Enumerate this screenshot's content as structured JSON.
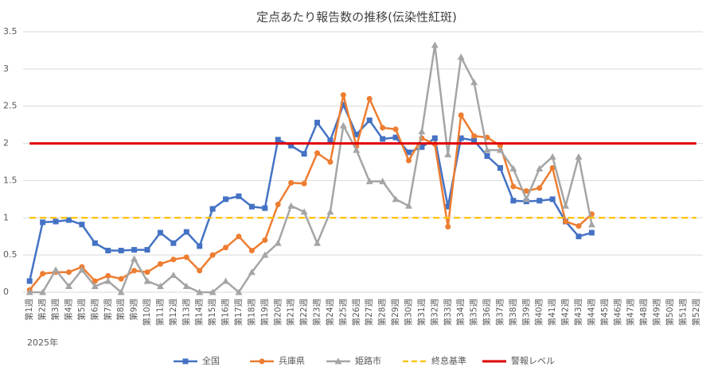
{
  "chart_data": {
    "type": "line",
    "title": "定点あたり報告数の推移(伝染性紅斑)",
    "x_label": "2025年",
    "categories": [
      "第1週",
      "第2週",
      "第3週",
      "第4週",
      "第5週",
      "第6週",
      "第7週",
      "第8週",
      "第9週",
      "第10週",
      "第11週",
      "第12週",
      "第13週",
      "第14週",
      "第15週",
      "第16週",
      "第17週",
      "第18週",
      "第19週",
      "第20週",
      "第21週",
      "第22週",
      "第23週",
      "第24週",
      "第25週",
      "第26週",
      "第27週",
      "第28週",
      "第29週",
      "第30週",
      "第31週",
      "第32週",
      "第33週",
      "第34週",
      "第35週",
      "第36週",
      "第37週",
      "第38週",
      "第39週",
      "第40週",
      "第41週",
      "第42週",
      "第43週",
      "第44週",
      "第45週",
      "第46週",
      "第47週",
      "第48週",
      "第49週",
      "第50週",
      "第51週",
      "第52週"
    ],
    "series": [
      {
        "name": "全国",
        "color": "#4472c4",
        "marker": "square",
        "values": [
          0.15,
          0.94,
          0.95,
          0.97,
          0.91,
          0.66,
          0.56,
          0.56,
          0.57,
          0.57,
          0.8,
          0.66,
          0.81,
          0.62,
          1.12,
          1.25,
          1.29,
          1.15,
          1.13,
          2.05,
          1.97,
          1.86,
          2.28,
          2.04,
          2.52,
          2.12,
          2.31,
          2.06,
          2.08,
          1.88,
          1.95,
          2.07,
          1.15,
          2.07,
          2.04,
          1.83,
          1.67,
          1.23,
          1.22,
          1.23,
          1.25,
          0.95,
          0.75,
          0.8,
          null,
          null,
          null,
          null,
          null,
          null,
          null,
          null
        ]
      },
      {
        "name": "兵庫県",
        "color": "#ed7d31",
        "marker": "circle",
        "values": [
          0.03,
          0.25,
          0.27,
          0.27,
          0.34,
          0.15,
          0.22,
          0.18,
          0.29,
          0.27,
          0.38,
          0.44,
          0.47,
          0.29,
          0.5,
          0.6,
          0.75,
          0.56,
          0.7,
          1.18,
          1.47,
          1.46,
          1.87,
          1.75,
          2.65,
          1.96,
          2.6,
          2.21,
          2.19,
          1.77,
          2.07,
          1.99,
          0.88,
          2.38,
          2.1,
          2.08,
          1.97,
          1.42,
          1.36,
          1.4,
          1.67,
          0.95,
          0.89,
          1.05,
          null,
          null,
          null,
          null,
          null,
          null,
          null,
          null
        ]
      },
      {
        "name": "姫路市",
        "color": "#a5a5a5",
        "marker": "triangle",
        "values": [
          0,
          0,
          0.3,
          0.08,
          0.3,
          0.08,
          0.15,
          0,
          0.45,
          0.15,
          0.08,
          0.23,
          0.08,
          0,
          0,
          0.15,
          0,
          0.27,
          0.5,
          0.66,
          1.16,
          1.08,
          0.66,
          1.08,
          2.24,
          1.91,
          1.49,
          1.49,
          1.25,
          1.16,
          2.16,
          3.32,
          1.85,
          3.16,
          2.82,
          1.91,
          1.91,
          1.66,
          1.25,
          1.66,
          1.82,
          1.16,
          1.82,
          0.91,
          null,
          null,
          null,
          null,
          null,
          null,
          null,
          null
        ]
      }
    ],
    "reference_lines": [
      {
        "name": "終息基準",
        "value": 1,
        "color": "#ffc000",
        "dashed": true
      },
      {
        "name": "警報レベル",
        "value": 2,
        "color": "#e00000",
        "dashed": false
      }
    ],
    "ylim": [
      0,
      3.5
    ],
    "yticks": [
      0,
      0.5,
      1,
      1.5,
      2,
      2.5,
      3,
      3.5
    ],
    "grid": true
  }
}
